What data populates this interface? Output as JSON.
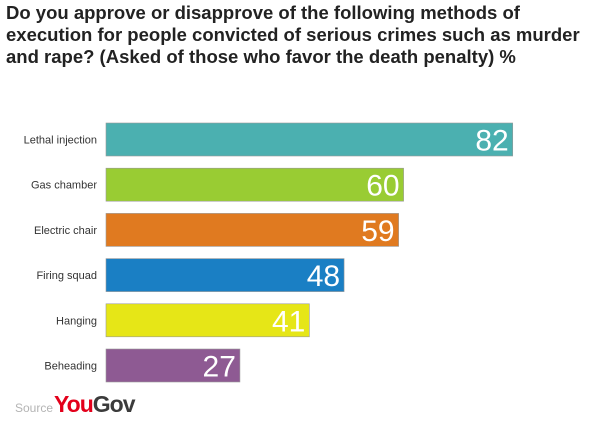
{
  "chart_data": {
    "type": "bar",
    "orientation": "horizontal",
    "title": "Do you approve or disapprove of the following methods of execution for people convicted of serious crimes such as murder and rape? (Asked of those who favor the death penalty) %",
    "categories": [
      "Lethal injection",
      "Gas chamber",
      "Electric chair",
      "Firing squad",
      "Hanging",
      "Beheading"
    ],
    "values": [
      82,
      60,
      59,
      48,
      41,
      27
    ],
    "labels": [
      "82",
      "60",
      "59",
      "48",
      "41",
      "27"
    ],
    "colors": [
      "#4bb0b0",
      "#99cc33",
      "#e07a20",
      "#1a7fc4",
      "#e6e617",
      "#8e5a93"
    ],
    "xlim": [
      0,
      100
    ],
    "grid": false,
    "legend": "none"
  },
  "source": {
    "label": "Source",
    "brand_part1": "You",
    "brand_part2": "Gov"
  }
}
